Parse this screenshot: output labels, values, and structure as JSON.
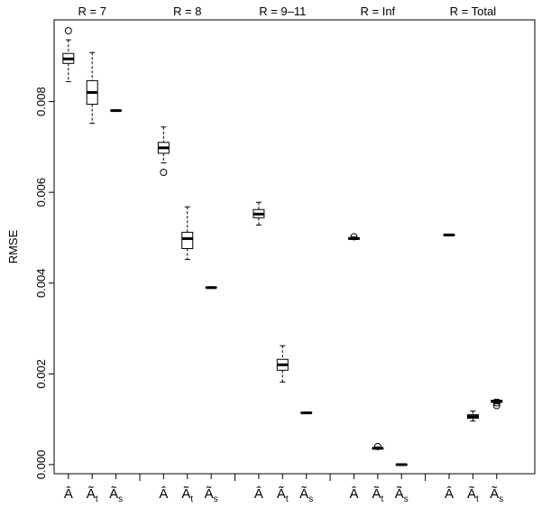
{
  "chart_data": {
    "type": "box",
    "ylabel": "RMSE",
    "ylim": [
      -0.0002,
      0.0098
    ],
    "yticks": [
      0.0,
      0.002,
      0.004,
      0.006,
      0.008
    ],
    "ytick_labels": [
      "0.000",
      "0.002",
      "0.004",
      "0.006",
      "0.008"
    ],
    "grid": false,
    "groups": [
      {
        "label": "R = 7",
        "boxes": [
          {
            "category": "Â",
            "subscript": "",
            "whisker_low": 0.00844,
            "q1": 0.00884,
            "median": 0.00894,
            "q3": 0.00906,
            "whisker_high": 0.00936,
            "outliers": [
              0.00956
            ]
          },
          {
            "category": "Ã",
            "subscript": "t",
            "whisker_low": 0.00752,
            "q1": 0.00794,
            "median": 0.0082,
            "q3": 0.00846,
            "whisker_high": 0.00908,
            "outliers": []
          },
          {
            "category": "Ã",
            "subscript": "s",
            "whisker_low": 0.00779,
            "q1": 0.0078,
            "median": 0.0078,
            "q3": 0.00781,
            "whisker_high": 0.00782,
            "outliers": []
          }
        ]
      },
      {
        "label": "R = 8",
        "boxes": [
          {
            "category": "Â",
            "subscript": "",
            "whisker_low": 0.00665,
            "q1": 0.00686,
            "median": 0.00698,
            "q3": 0.0071,
            "whisker_high": 0.00744,
            "outliers": [
              0.00644
            ]
          },
          {
            "category": "Ã",
            "subscript": "t",
            "whisker_low": 0.00452,
            "q1": 0.00476,
            "median": 0.00498,
            "q3": 0.00512,
            "whisker_high": 0.00568,
            "outliers": []
          },
          {
            "category": "Ã",
            "subscript": "s",
            "whisker_low": 0.00389,
            "q1": 0.0039,
            "median": 0.0039,
            "q3": 0.00391,
            "whisker_high": 0.00392,
            "outliers": []
          }
        ]
      },
      {
        "label": "R = 9–11",
        "boxes": [
          {
            "category": "Â",
            "subscript": "",
            "whisker_low": 0.00528,
            "q1": 0.00544,
            "median": 0.00552,
            "q3": 0.00562,
            "whisker_high": 0.00578,
            "outliers": []
          },
          {
            "category": "Ã",
            "subscript": "t",
            "whisker_low": 0.00182,
            "q1": 0.00208,
            "median": 0.0022,
            "q3": 0.00232,
            "whisker_high": 0.00262,
            "outliers": []
          },
          {
            "category": "Ã",
            "subscript": "s",
            "whisker_low": 0.00113,
            "q1": 0.00114,
            "median": 0.00114,
            "q3": 0.00115,
            "whisker_high": 0.00116,
            "outliers": []
          }
        ]
      },
      {
        "label": "R = Inf",
        "boxes": [
          {
            "category": "Â",
            "subscript": "",
            "whisker_low": 0.00496,
            "q1": 0.00497,
            "median": 0.00498,
            "q3": 0.005,
            "whisker_high": 0.00502,
            "outliers": [
              0.00502
            ]
          },
          {
            "category": "Ã",
            "subscript": "t",
            "whisker_low": 0.00034,
            "q1": 0.00035,
            "median": 0.00036,
            "q3": 0.00037,
            "whisker_high": 0.00039,
            "outliers": [
              0.0004
            ]
          },
          {
            "category": "Ã",
            "subscript": "s",
            "whisker_low": -1e-05,
            "q1": -1e-05,
            "median": 0.0,
            "q3": 1e-05,
            "whisker_high": 1e-05,
            "outliers": []
          }
        ]
      },
      {
        "label": "R = Total",
        "boxes": [
          {
            "category": "Â",
            "subscript": "",
            "whisker_low": 0.00504,
            "q1": 0.00505,
            "median": 0.00506,
            "q3": 0.00507,
            "whisker_high": 0.00508,
            "outliers": []
          },
          {
            "category": "Ã",
            "subscript": "t",
            "whisker_low": 0.00096,
            "q1": 0.00102,
            "median": 0.00106,
            "q3": 0.0011,
            "whisker_high": 0.00118,
            "outliers": []
          },
          {
            "category": "Ã",
            "subscript": "s",
            "whisker_low": 0.00134,
            "q1": 0.00137,
            "median": 0.0014,
            "q3": 0.00142,
            "whisker_high": 0.00144,
            "outliers": [
              0.0013,
              0.00136
            ]
          }
        ]
      }
    ]
  }
}
